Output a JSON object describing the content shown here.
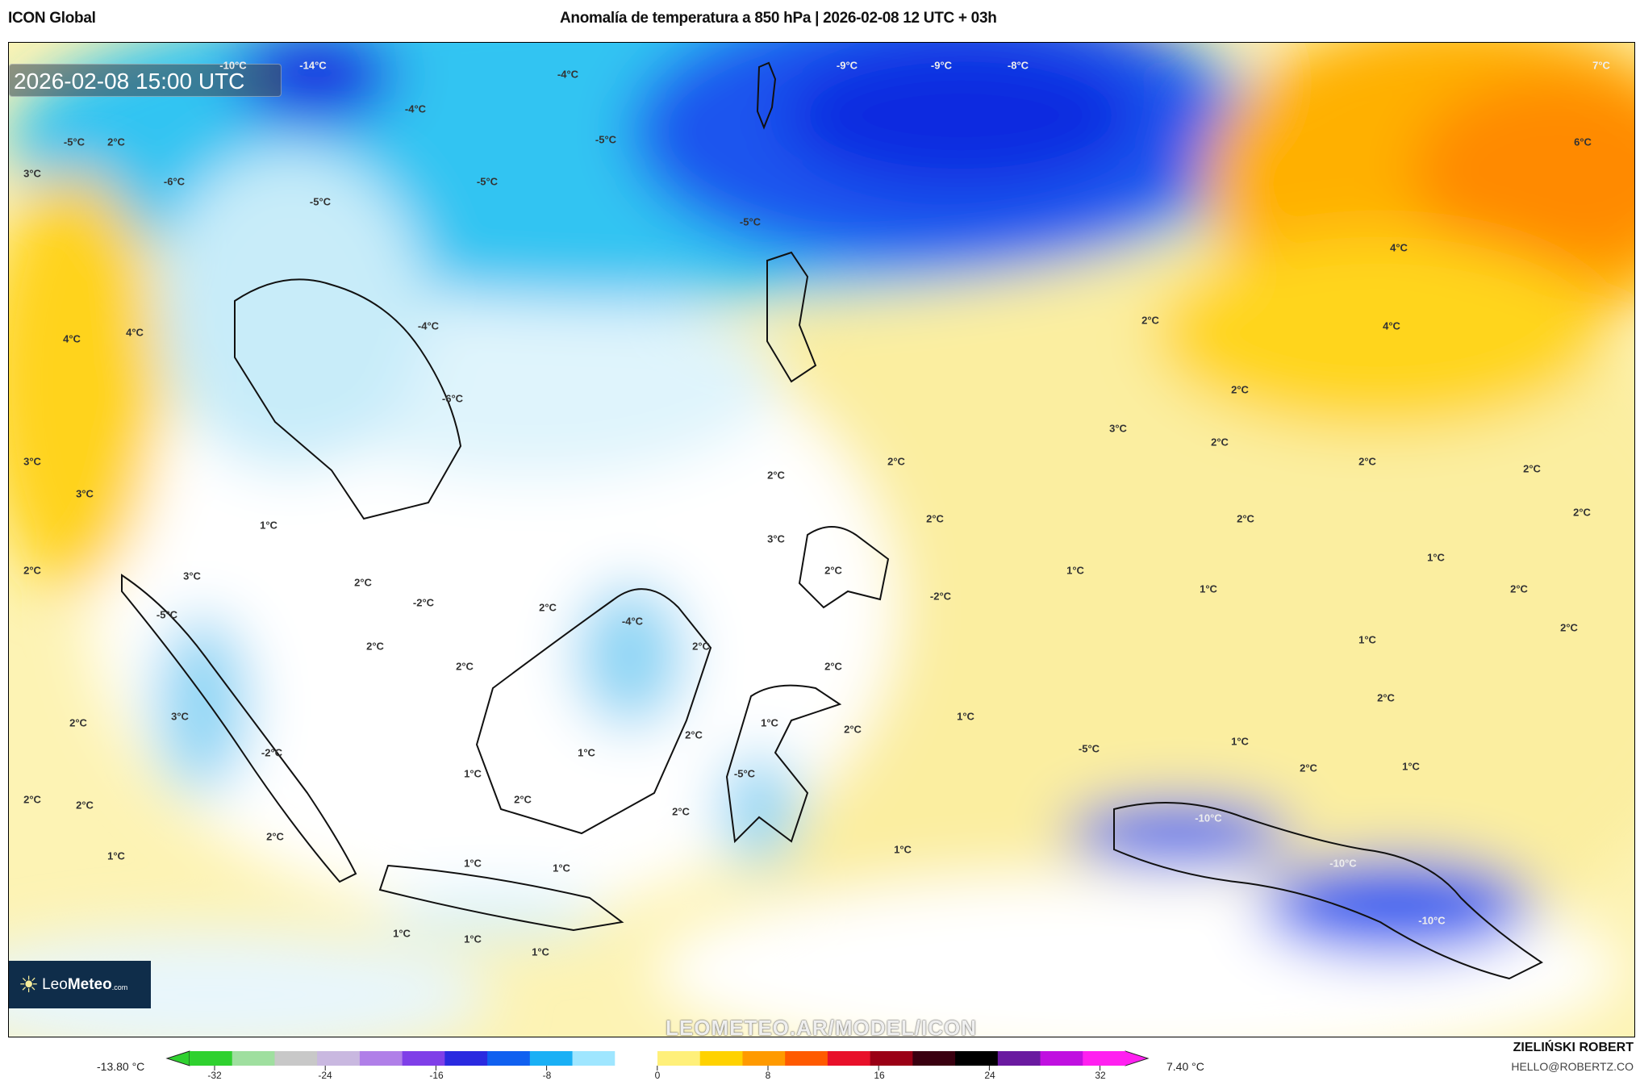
{
  "header": {
    "model": "ICON Global",
    "title": "Anomalía de temperatura a 850 hPa | 2026-02-08 12 UTC + 03h"
  },
  "map": {
    "timestamp": "2026-02-08 15:00 UTC",
    "watermark": "LEOMETEO.AR/MODEL/ICON",
    "logo": {
      "part1": "Leo",
      "part2": "Meteo",
      "part3": ".com",
      "icon": "sun-icon"
    },
    "labels": [
      "-10°C",
      "-14°C",
      "-9°C",
      "-9°C",
      "-8°C",
      "7°C",
      "-4°C",
      "-4°C",
      "-5°C",
      "2°C",
      "3°C",
      "-6°C",
      "6°C",
      "-5°C",
      "-5°C",
      "-5°C",
      "-5°C",
      "4°C",
      "2°C",
      "4°C",
      "4°C",
      "4°C",
      "-4°C",
      "-6°C",
      "2°C",
      "3°C",
      "2°C",
      "2°C",
      "2°C",
      "3°C",
      "3°C",
      "2°C",
      "2°C",
      "2°C",
      "2°C",
      "2°C",
      "1°C",
      "3°C",
      "2°C",
      "1°C",
      "1°C",
      "2°C",
      "3°C",
      "2°C",
      "-5°C",
      "-2°C",
      "2°C",
      "-4°C",
      "-2°C",
      "1°C",
      "2°C",
      "2°C",
      "2°C",
      "2°C",
      "1°C",
      "2°C",
      "2°C",
      "2°C",
      "3°C",
      "2°C",
      "1°C",
      "2°C",
      "1°C",
      "2°C",
      "-5°C",
      "1°C",
      "-2°C",
      "1°C",
      "-5°C",
      "2°C",
      "1°C",
      "1°C",
      "2°C",
      "2°C",
      "2°C",
      "2°C",
      "-10°C",
      "2°C",
      "1°C",
      "1°C",
      "1°C",
      "1°C",
      "-10°C",
      "-10°C",
      "1°C",
      "1°C",
      "1°C"
    ]
  },
  "colorbar": {
    "min_label": "-13.80 °C",
    "max_label": "7.40 °C",
    "ticks": [
      "-32",
      "-24",
      "-16",
      "-8",
      "0",
      "8",
      "16",
      "24",
      "32"
    ],
    "colors": [
      "#2fd12f",
      "#9fdf9f",
      "#c8c8c8",
      "#c9b8e0",
      "#b07fe8",
      "#7f3fe8",
      "#2a2ae0",
      "#1060f0",
      "#1ab0f5",
      "#9fe6ff",
      "#ffffff",
      "#fff07a",
      "#ffd200",
      "#ff9a00",
      "#ff5a00",
      "#e8102a",
      "#9a0015",
      "#3a0010",
      "#000000",
      "#6a1aa0",
      "#c010e0",
      "#ff20f0"
    ]
  },
  "footer": {
    "author": "ZIELIŃSKI ROBERT",
    "email": "HELLO@ROBERTZ.CO"
  }
}
